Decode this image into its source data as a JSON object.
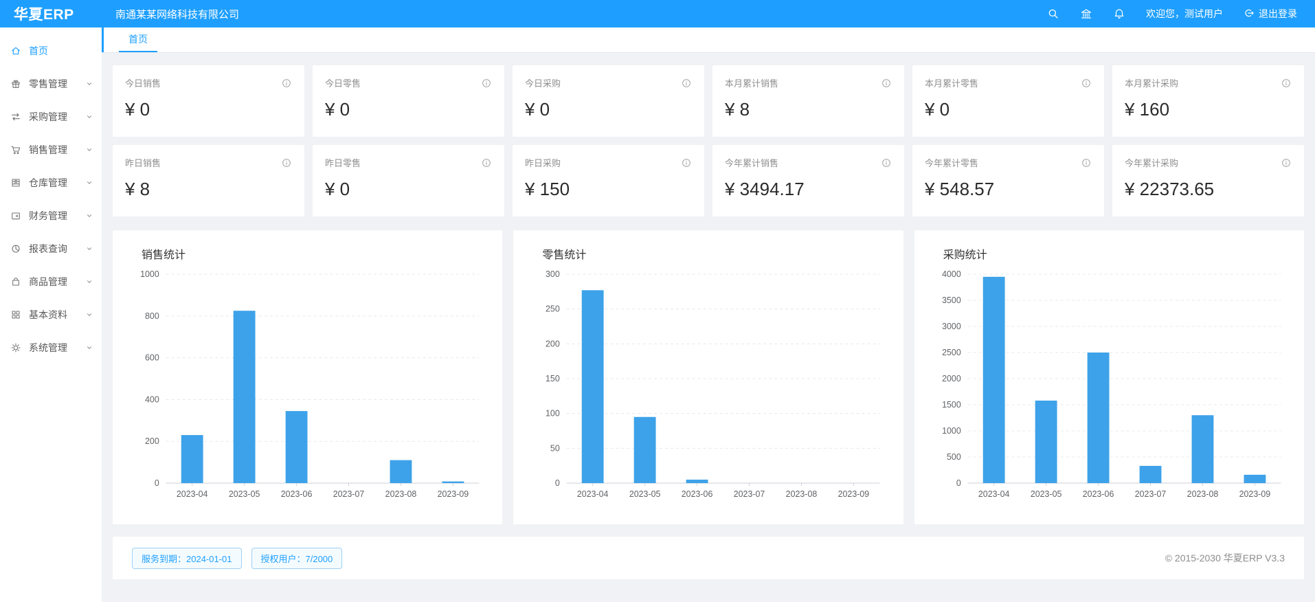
{
  "colors": {
    "primary": "#1e9fff",
    "bar": "#3da2e9",
    "content_bg": "#f0f2f5"
  },
  "header": {
    "logo": "华夏ERP",
    "company": "南通某某网络科技有限公司",
    "welcome": "欢迎您，测试用户",
    "logout_label": "退出登录"
  },
  "tabbar": {
    "tabs": [
      {
        "label": "首页"
      }
    ]
  },
  "sidebar": {
    "items": [
      {
        "label": "首页",
        "icon": "home-icon",
        "active": true
      },
      {
        "label": "零售管理",
        "icon": "gift-icon"
      },
      {
        "label": "采购管理",
        "icon": "swap-arrows-icon"
      },
      {
        "label": "销售管理",
        "icon": "cart-icon"
      },
      {
        "label": "仓库管理",
        "icon": "warehouse-box-icon"
      },
      {
        "label": "财务管理",
        "icon": "wallet-icon"
      },
      {
        "label": "报表查询",
        "icon": "pie-chart-icon"
      },
      {
        "label": "商品管理",
        "icon": "shopping-bag-icon"
      },
      {
        "label": "基本资料",
        "icon": "grid-icon"
      },
      {
        "label": "系统管理",
        "icon": "gear-icon"
      }
    ]
  },
  "stats": [
    {
      "label": "今日销售",
      "value": "¥ 0"
    },
    {
      "label": "今日零售",
      "value": "¥ 0"
    },
    {
      "label": "今日采购",
      "value": "¥ 0"
    },
    {
      "label": "本月累计销售",
      "value": "¥ 8"
    },
    {
      "label": "本月累计零售",
      "value": "¥ 0"
    },
    {
      "label": "本月累计采购",
      "value": "¥ 160"
    },
    {
      "label": "昨日销售",
      "value": "¥ 8"
    },
    {
      "label": "昨日零售",
      "value": "¥ 0"
    },
    {
      "label": "昨日采购",
      "value": "¥ 150"
    },
    {
      "label": "今年累计销售",
      "value": "¥ 3494.17"
    },
    {
      "label": "今年累计零售",
      "value": "¥ 548.57"
    },
    {
      "label": "今年累计采购",
      "value": "¥ 22373.65"
    }
  ],
  "chart_data": [
    {
      "type": "bar",
      "title": "销售统计",
      "categories": [
        "2023-04",
        "2023-05",
        "2023-06",
        "2023-07",
        "2023-08",
        "2023-09"
      ],
      "values": [
        230,
        825,
        345,
        0,
        110,
        8
      ],
      "xlabel": "",
      "ylabel": "",
      "ylim": [
        0,
        1000
      ],
      "ytick_step": 200,
      "grid": true,
      "legend": "none",
      "color": "#3da2e9"
    },
    {
      "type": "bar",
      "title": "零售统计",
      "categories": [
        "2023-04",
        "2023-05",
        "2023-06",
        "2023-07",
        "2023-08",
        "2023-09"
      ],
      "values": [
        277,
        95,
        5,
        0,
        0,
        0
      ],
      "xlabel": "",
      "ylabel": "",
      "ylim": [
        0,
        300
      ],
      "ytick_step": 50,
      "grid": true,
      "legend": "none",
      "color": "#3da2e9"
    },
    {
      "type": "bar",
      "title": "采购统计",
      "categories": [
        "2023-04",
        "2023-05",
        "2023-06",
        "2023-07",
        "2023-08",
        "2023-09"
      ],
      "values": [
        3950,
        1580,
        2500,
        330,
        1300,
        160
      ],
      "xlabel": "",
      "ylabel": "",
      "ylim": [
        0,
        4000
      ],
      "ytick_step": 500,
      "grid": true,
      "legend": "none",
      "color": "#3da2e9"
    }
  ],
  "footer": {
    "badges": [
      {
        "label": "服务到期：2024-01-01"
      },
      {
        "label": "授权用户：7/2000"
      }
    ],
    "copyright": "© 2015-2030 华夏ERP V3.3"
  }
}
